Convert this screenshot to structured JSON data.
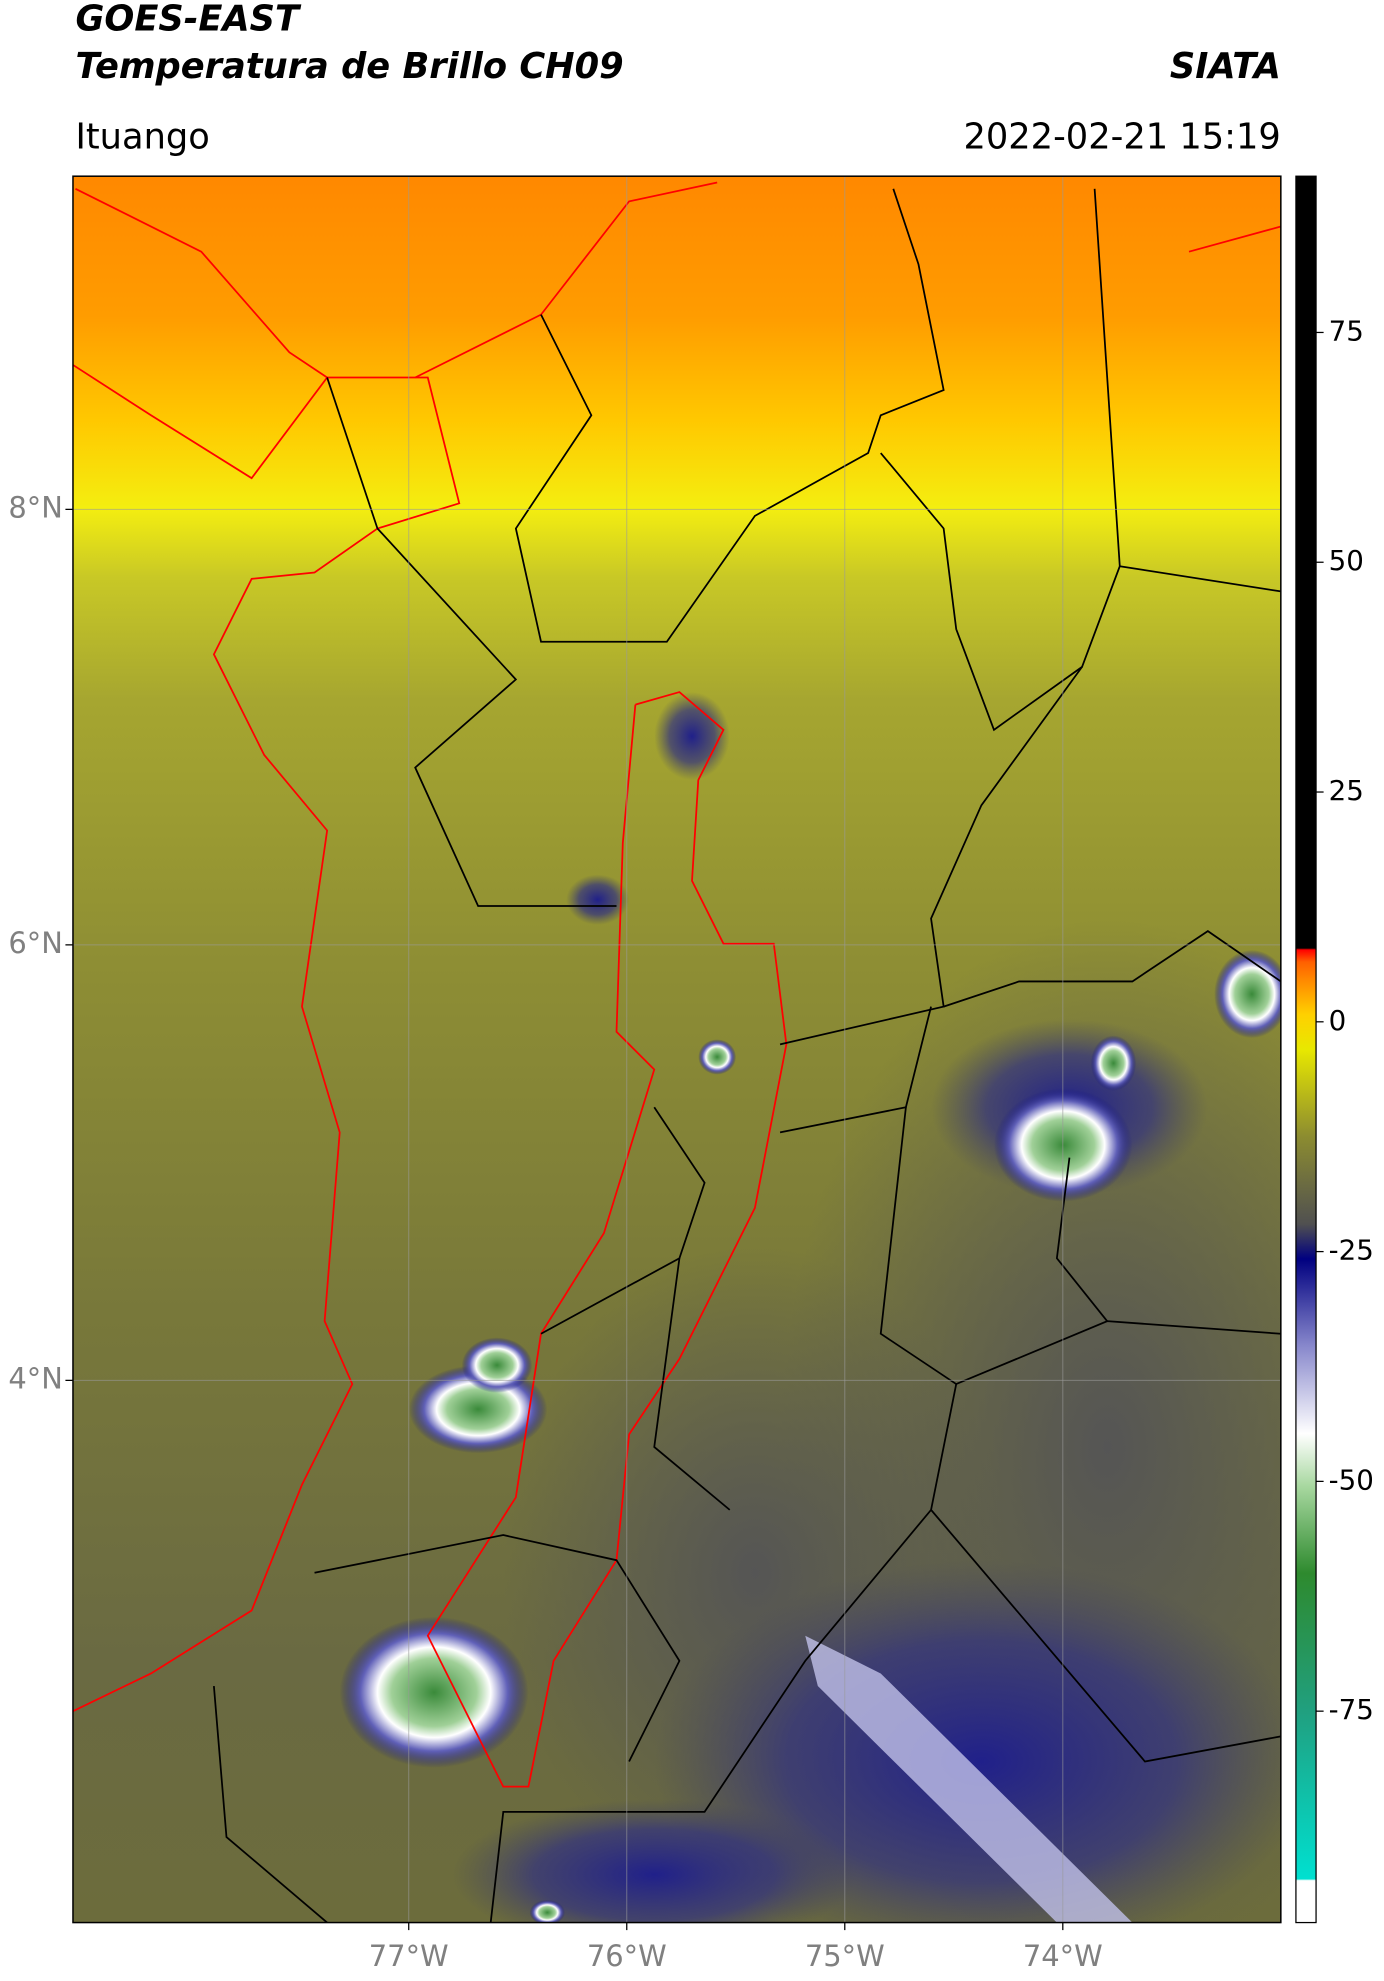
{
  "chart_data": {
    "type": "map",
    "title": "GOES-EAST",
    "subtitle": "Temperatura de Brillo CH09",
    "source": "SIATA",
    "region": "Ituango",
    "datetime": "2022-02-21 15:19",
    "xlim": [
      -78.54,
      -73.0
    ],
    "ylim": [
      1.51,
      9.53
    ],
    "xticks": [
      {
        "value": -77,
        "label": "77°W"
      },
      {
        "value": -76,
        "label": "76°W"
      },
      {
        "value": -75,
        "label": "75°W"
      },
      {
        "value": -74,
        "label": "74°W"
      }
    ],
    "yticks": [
      {
        "value": 8,
        "label": "8°N"
      },
      {
        "value": 6,
        "label": "6°N"
      },
      {
        "value": 4,
        "label": "4°N"
      }
    ],
    "grid": true,
    "colorbar": {
      "lim": [
        -98,
        92
      ],
      "ticks": [
        75,
        50,
        25,
        0,
        -25,
        -50,
        -75
      ]
    }
  }
}
